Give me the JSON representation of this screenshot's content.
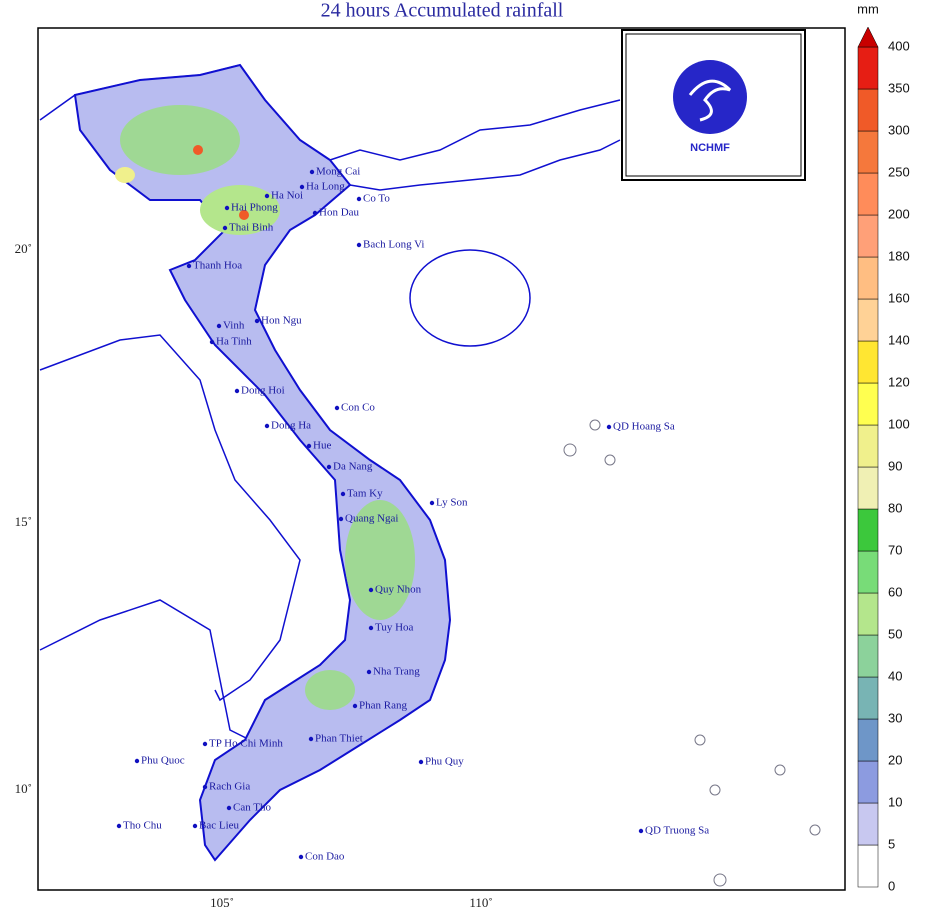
{
  "title": "24 hours Accumulated rainfall",
  "logo": {
    "text": "NCHMF"
  },
  "colorbar": {
    "unit": "mm",
    "labels": [
      "0",
      "5",
      "10",
      "20",
      "30",
      "40",
      "50",
      "60",
      "70",
      "80",
      "90",
      "100",
      "120",
      "140",
      "160",
      "180",
      "200",
      "250",
      "300",
      "350",
      "400"
    ],
    "colors": [
      "#ffffff",
      "#c8c8f0",
      "#8c9be0",
      "#6e96c8",
      "#78b4b4",
      "#8cd29b",
      "#b4e68c",
      "#78dc78",
      "#3cc83c",
      "#f0f0b4",
      "#f0f08c",
      "#ffff50",
      "#ffe632",
      "#ffd296",
      "#ffbe82",
      "#ffa078",
      "#ff8c5a",
      "#f5783c",
      "#f05a28",
      "#e61e14",
      "#c80000"
    ]
  },
  "axes": {
    "lat_labels": [
      "20˚",
      "15˚",
      "10˚"
    ],
    "lon_labels": [
      "105˚",
      "110˚"
    ]
  },
  "places": [
    "Mong Cai",
    "Ha Long",
    "Co To",
    "Ha Noi",
    "Hai Phong",
    "Hon Dau",
    "Thai Binh",
    "Bach Long Vi",
    "Thanh Hoa",
    "Vinh",
    "Hon Ngu",
    "Ha Tinh",
    "Dong Hoi",
    "Con Co",
    "Dong Ha",
    "Hue",
    "Da Nang",
    "QD Hoang Sa",
    "Tam Ky",
    "Ly Son",
    "Quang Ngai",
    "Quy Nhon",
    "Tuy Hoa",
    "Nha Trang",
    "Phan Rang",
    "TP Ho Chi Minh",
    "Phan Thiet",
    "Phu Quoc",
    "Phu Quy",
    "Rach Gia",
    "Can Tho",
    "Bac Lieu",
    "Tho Chu",
    "Con Dao",
    "QD Truong Sa"
  ]
}
